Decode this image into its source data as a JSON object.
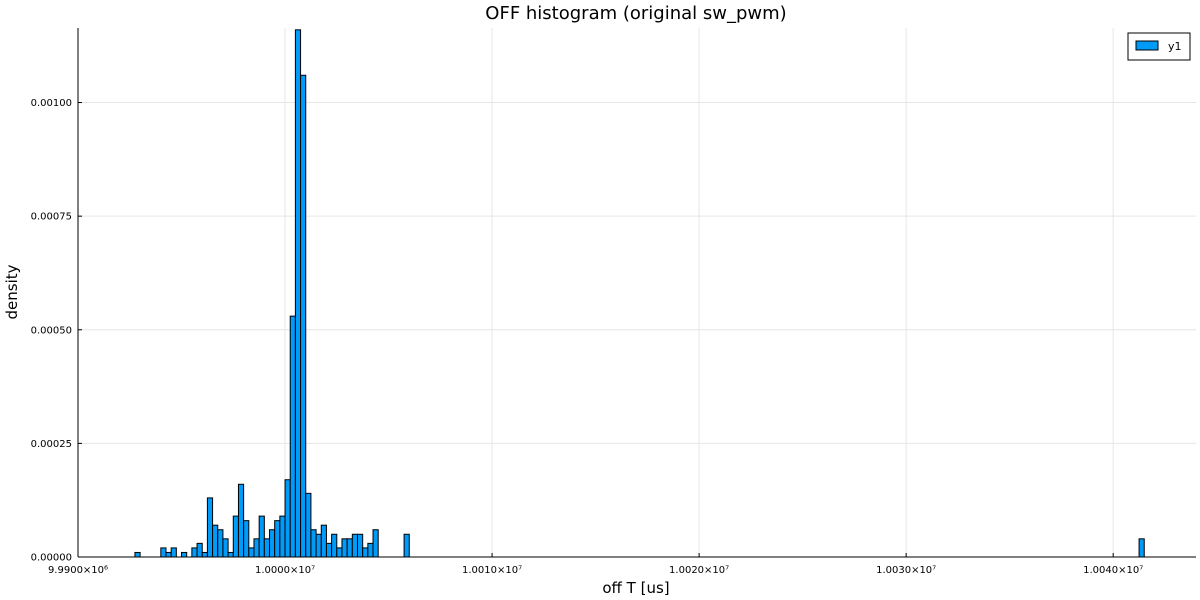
{
  "chart_data": {
    "type": "bar",
    "title": "OFF histogram (original sw_pwm)",
    "xlabel": "off T [us]",
    "ylabel": "density",
    "xlim": [
      9990000,
      10044000
    ],
    "ylim": [
      0,
      0.001164
    ],
    "grid": true,
    "legend_placement": "top-right",
    "bar_color": "#009AF9",
    "bin_width": 250,
    "x_ticks": [
      {
        "value": 9990000,
        "label": "9.9900×10⁶"
      },
      {
        "value": 10000000,
        "label": "1.0000×10⁷"
      },
      {
        "value": 10010000,
        "label": "1.0010×10⁷"
      },
      {
        "value": 10020000,
        "label": "1.0020×10⁷"
      },
      {
        "value": 10030000,
        "label": "1.0030×10⁷"
      },
      {
        "value": 10040000,
        "label": "1.0040×10⁷"
      }
    ],
    "y_ticks": [
      {
        "value": 0,
        "label": "0.00000"
      },
      {
        "value": 0.00025,
        "label": "0.00025"
      },
      {
        "value": 0.0005,
        "label": "0.00050"
      },
      {
        "value": 0.00075,
        "label": "0.00075"
      },
      {
        "value": 0.001,
        "label": "0.00100"
      }
    ],
    "series": [
      {
        "name": "y1",
        "x": [
          9992875,
          9994125,
          9994375,
          9994625,
          9995125,
          9995625,
          9995875,
          9996125,
          9996375,
          9996625,
          9996875,
          9997125,
          9997375,
          9997625,
          9997875,
          9998125,
          9998375,
          9998625,
          9998875,
          9999125,
          9999375,
          9999625,
          9999875,
          10000125,
          10000375,
          10000625,
          10000875,
          10001125,
          10001375,
          10001625,
          10001875,
          10002125,
          10002375,
          10002625,
          10002875,
          10003125,
          10003375,
          10003625,
          10003875,
          10004125,
          10004375,
          10005875,
          10041375
        ],
        "values": [
          1e-05,
          2e-05,
          1e-05,
          2e-05,
          1e-05,
          2e-05,
          3e-05,
          1e-05,
          0.00013,
          7e-05,
          6e-05,
          4e-05,
          1e-05,
          9e-05,
          0.00016,
          8e-05,
          2e-05,
          4e-05,
          9e-05,
          4e-05,
          6e-05,
          8e-05,
          9e-05,
          0.00017,
          0.00053,
          0.00116,
          0.00106,
          0.00014,
          6e-05,
          5e-05,
          7e-05,
          3e-05,
          5e-05,
          2e-05,
          4e-05,
          4e-05,
          5e-05,
          5e-05,
          2e-05,
          3e-05,
          6e-05,
          5e-05,
          4e-05
        ]
      }
    ]
  }
}
